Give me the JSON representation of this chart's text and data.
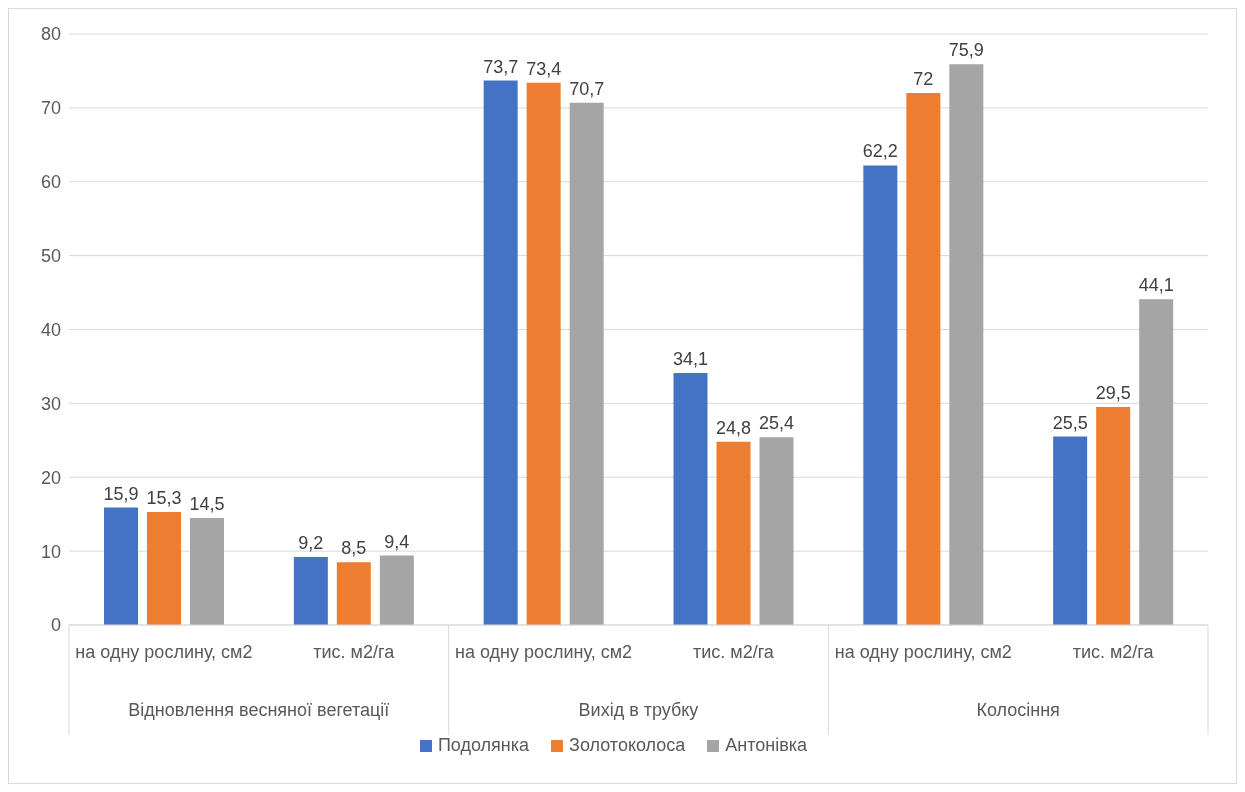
{
  "chart_data": {
    "type": "bar",
    "categories": [
      "на одну рослину, см2",
      "тис. м2/га",
      "на одну рослину, см2",
      "тис. м2/га",
      "на одну рослину, см2",
      "тис. м2/га"
    ],
    "series": [
      {
        "name": "Подолянка",
        "color": "#4472c4",
        "values": [
          15.9,
          9.2,
          73.7,
          34.1,
          62.2,
          25.5
        ],
        "value_labels": [
          "15,9",
          "9,2",
          "73,7",
          "34,1",
          "62,2",
          "25,5"
        ]
      },
      {
        "name": "Золотоколоса",
        "color": "#ed7d31",
        "values": [
          15.3,
          8.5,
          73.4,
          24.8,
          72,
          29.5
        ],
        "value_labels": [
          "15,3",
          "8,5",
          "73,4",
          "24,8",
          "72",
          "29,5"
        ]
      },
      {
        "name": "Антонівка",
        "color": "#a5a5a5",
        "values": [
          14.5,
          9.4,
          70.7,
          25.4,
          75.9,
          44.1
        ],
        "value_labels": [
          "14,5",
          "9,4",
          "70,7",
          "25,4",
          "75,9",
          "44,1"
        ]
      }
    ],
    "annotations": [
      "Відновлення весняної вегетації",
      "Вихід в трубку",
      "Колосіння"
    ],
    "ylim": [
      0,
      80
    ],
    "yticks": [
      0,
      10,
      20,
      30,
      40,
      50,
      60,
      70,
      80
    ],
    "grid": "y",
    "legend": "bottom"
  }
}
